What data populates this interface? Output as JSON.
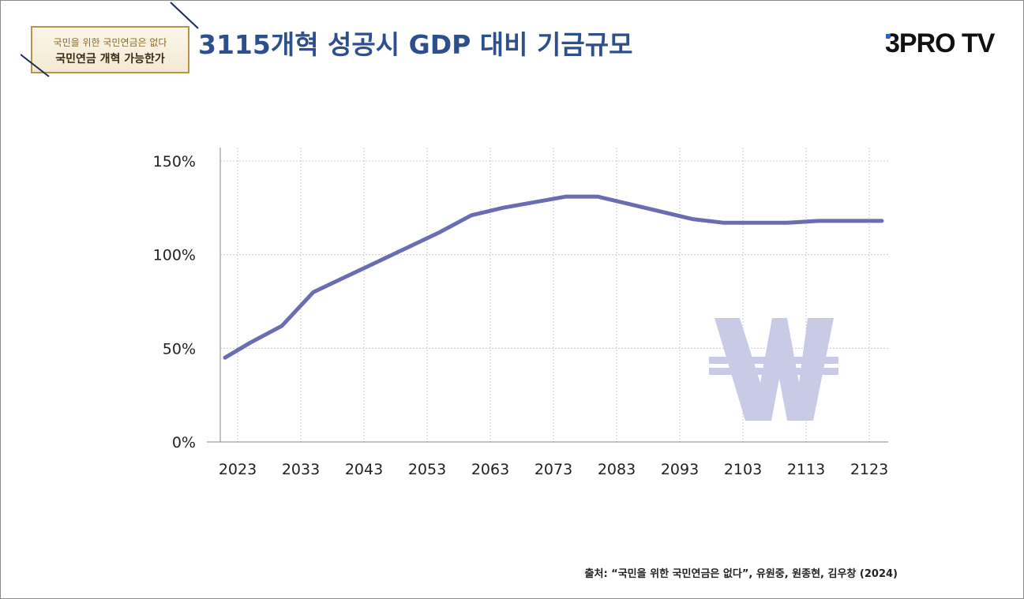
{
  "header": {
    "badge_line1": "국민을 위한 국민연금은 없다",
    "badge_line2": "국민연금 개혁 가능한가",
    "title": "3115개혁 성공시 GDP 대비 기금규모",
    "logo": "3PRO TV"
  },
  "source": "출처: “국민을 위한 국민연금은 없다”, 유원중, 원종현, 김우창 (2024)",
  "watermark_icon": "won-sign-icon",
  "colors": {
    "line": "#6b6db3",
    "title": "#2d4f8e",
    "watermark": "#c9cbe6",
    "grid": "#cccccc"
  },
  "chart_data": {
    "type": "line",
    "title": "",
    "xlabel": "",
    "ylabel": "",
    "categories": [
      "2023",
      "2033",
      "2043",
      "2053",
      "2063",
      "2073",
      "2083",
      "2093",
      "2103",
      "2113",
      "2123"
    ],
    "y_ticks": [
      "0%",
      "50%",
      "100%",
      "150%"
    ],
    "ylim": [
      0,
      150
    ],
    "xlim": [
      2021,
      2125
    ],
    "grid": true,
    "series": [
      {
        "x": [
          2021,
          2025,
          2030,
          2035,
          2040,
          2045,
          2050,
          2055,
          2060,
          2065,
          2070,
          2075,
          2080,
          2085,
          2090,
          2095,
          2100,
          2105,
          2110,
          2115,
          2120,
          2125
        ],
        "values": [
          45,
          53,
          62,
          80,
          88,
          96,
          104,
          112,
          121,
          125,
          128,
          131,
          131,
          127,
          123,
          119,
          117,
          117,
          117,
          118,
          118,
          118
        ]
      }
    ]
  }
}
